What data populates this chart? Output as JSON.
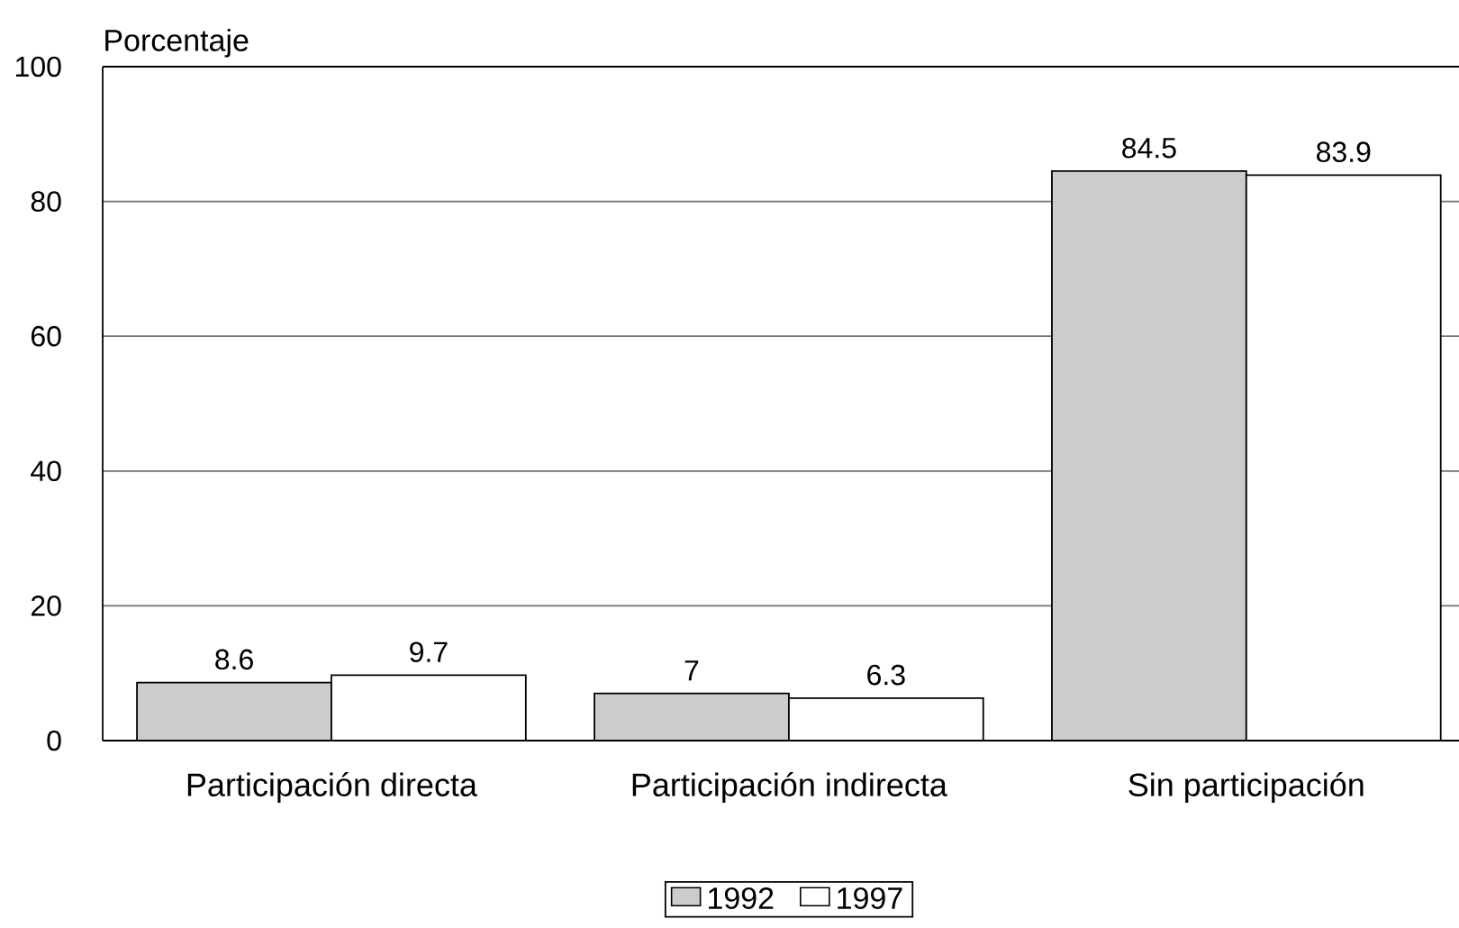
{
  "chart_data": {
    "type": "bar",
    "ylabel": "Porcentaje",
    "categories": [
      "Participación directa",
      "Participación indirecta",
      "Sin participación"
    ],
    "series": [
      {
        "name": "1992",
        "color": "#cccccc",
        "values": [
          8.6,
          7,
          84.5
        ]
      },
      {
        "name": "1997",
        "color": "#ffffff",
        "values": [
          9.7,
          6.3,
          83.9
        ]
      }
    ],
    "ylim": [
      0,
      100
    ],
    "yticks": [
      0,
      20,
      40,
      60,
      80,
      100
    ],
    "grid": "y",
    "legend": "bottom",
    "data_labels": true
  }
}
